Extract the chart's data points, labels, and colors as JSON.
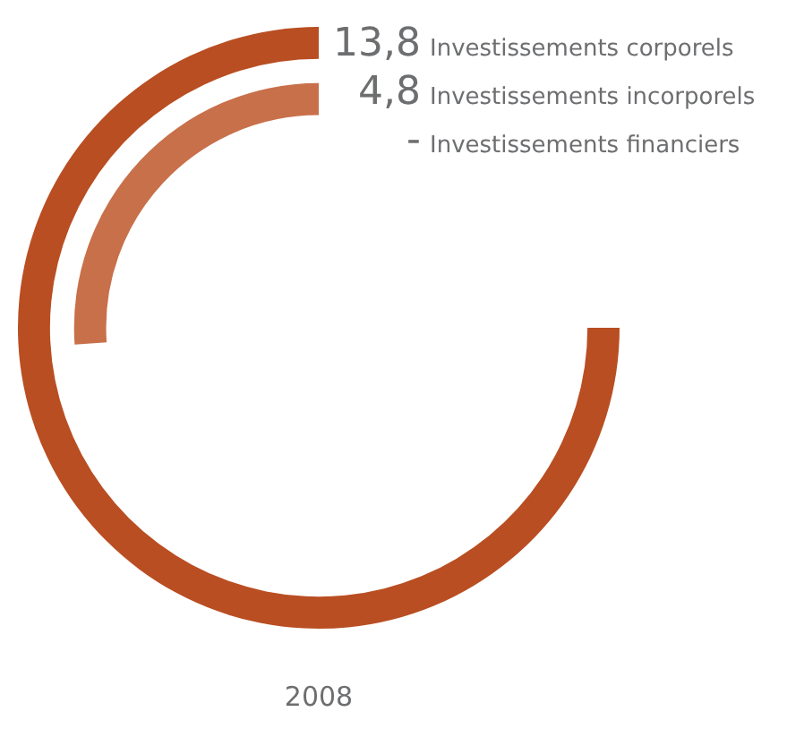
{
  "chart_data": {
    "type": "other",
    "xlabel": "2008",
    "categories": [
      "Investissements corporels",
      "Investissements incorporels",
      "Investissements financiers"
    ],
    "values": [
      13.8,
      4.8,
      null
    ],
    "value_labels": [
      "13,8",
      "4,8",
      "-"
    ],
    "colors": [
      "#b94e22",
      "#c8704a",
      "#c9825a"
    ]
  }
}
